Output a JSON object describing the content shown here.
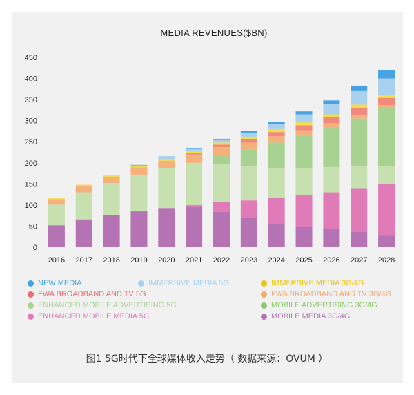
{
  "chart_data": {
    "type": "bar",
    "stacked": true,
    "title": "MEDIA REVENUES($BN)",
    "xlabel": "",
    "ylabel": "",
    "ylim": [
      0,
      450
    ],
    "yticks": [
      0,
      50,
      100,
      150,
      200,
      250,
      300,
      350,
      400,
      450
    ],
    "grid": false,
    "legend_position": "bottom",
    "categories": [
      "2016",
      "2017",
      "2018",
      "2019",
      "2020",
      "2021",
      "2022",
      "2023",
      "2024",
      "2025",
      "2026",
      "2027",
      "2028"
    ],
    "series": [
      {
        "name": "MOBILE MEDIA 3G/4G",
        "color": "#b673b4",
        "values": [
          52,
          66,
          76,
          85,
          93,
          95,
          84,
          70,
          57,
          48,
          44,
          37,
          27
        ]
      },
      {
        "name": "ENHANCED MOBILE MEDIA 5G",
        "color": "#e07bb7",
        "values": [
          0,
          0,
          0,
          0,
          0,
          5,
          24,
          41,
          60,
          75,
          86,
          103,
          122
        ]
      },
      {
        "name": "MOBILE ADVERTISING 3G/4G",
        "color": "#c6e0b0",
        "values": [
          49,
          64,
          76,
          87,
          94,
          100,
          89,
          81,
          70,
          64,
          60,
          53,
          43
        ]
      },
      {
        "name": "ENHANCED MOBILE ADVERTISING 5G",
        "color": "#a9d292",
        "values": [
          0,
          0,
          0,
          0,
          0,
          0,
          21,
          40,
          61,
          78,
          94,
          112,
          138
        ]
      },
      {
        "name": "FWA BROADBAND AND TV 3G/4G",
        "color": "#f5b17c",
        "values": [
          13,
          15,
          15,
          17,
          18,
          20,
          19,
          16,
          15,
          12,
          10,
          9,
          7
        ]
      },
      {
        "name": "FWA BROADBAND AND TV 5G",
        "color": "#f08a7a",
        "values": [
          0,
          0,
          0,
          0,
          0,
          3,
          6,
          8,
          10,
          12,
          14,
          17,
          17
        ]
      },
      {
        "name": "IMMERSIVE MEDIA 3G/4G",
        "color": "#f3dc4e",
        "values": [
          2,
          3,
          3,
          3,
          4,
          4,
          5,
          6,
          7,
          7,
          7,
          7,
          6
        ]
      },
      {
        "name": "IMMERSIVE MEDIA 5G",
        "color": "#a8d1f0",
        "values": [
          0,
          0,
          0,
          2,
          4,
          6,
          6,
          9,
          12,
          19,
          24,
          32,
          40
        ]
      },
      {
        "name": "NEW MEDIA",
        "color": "#49a3e2",
        "values": [
          0,
          0,
          0,
          1,
          2,
          2,
          3,
          4,
          5,
          7,
          9,
          13,
          20
        ]
      }
    ]
  },
  "legend": [
    {
      "label": "NEW MEDIA",
      "color": "#49a3e2"
    },
    {
      "label": "IMMERSIVE  MEDIA 5G",
      "color": "#a8d1f0"
    },
    {
      "label": "IMMERSIVE  MEDIA 3G/4G",
      "color": "#e8c51f"
    },
    {
      "label": "FWA BROADBAND AND TV 5G",
      "color": "#ec6c6f"
    },
    {
      "label": "FWA BROADBAND AND TV 3G/4G",
      "color": "#f5a96b"
    },
    {
      "label": "ENHANCED MOBILE ADVERTISING 5G",
      "color": "#a9d292"
    },
    {
      "label": "MOBILE ADVERTISING 3G/4G",
      "color": "#8cc76a"
    },
    {
      "label": "ENHANCED MOBILE MEDIA 5G",
      "color": "#e07bb7"
    },
    {
      "label": "MOBILE MEDIA 3G/4G",
      "color": "#b673b4"
    }
  ],
  "caption": "图1  5G时代下全球媒体收入走势（ 数据来源：OVUM ）"
}
